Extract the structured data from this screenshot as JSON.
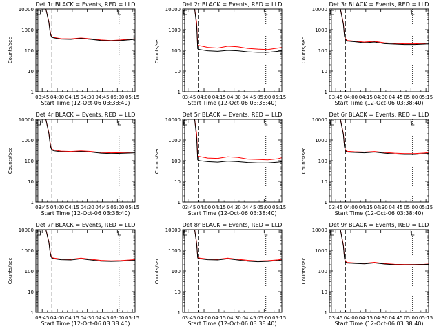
{
  "figure": {
    "title_suffix": "BLACK = Events, RED = LLD",
    "xlabel": "Start Time (12-Oct-06 03:38:40)",
    "ylabel": "Counts/sec",
    "x_ticks": [
      "03:45",
      "04:00",
      "04:15",
      "04:30",
      "04:45",
      "05:00",
      "05:15"
    ],
    "y_ticks": [
      "1",
      "10",
      "100",
      "1000",
      "10000"
    ],
    "colors": {
      "events": "#000000",
      "lld": "#ff0000"
    }
  },
  "chart_data": [
    {
      "type": "line",
      "title": "Det 1r BLACK = Events, RED = LLD",
      "xlabel": "Start Time (12-Oct-06 03:38:40)",
      "ylabel": "Counts/sec",
      "x_unit": "minutes after 03:38:40",
      "xlim": [
        0,
        99
      ],
      "ylim": [
        1,
        10000
      ],
      "yscale": "log",
      "vlines": [
        {
          "x": 2,
          "style": "solid"
        },
        {
          "x": 16,
          "style": "dashed"
        },
        {
          "x": 83,
          "style": "dotted"
        }
      ],
      "series": [
        {
          "name": "Events",
          "x": [
            10,
            13,
            14,
            15,
            16,
            18,
            25,
            35,
            45,
            55,
            65,
            75,
            85,
            95,
            99
          ],
          "y": [
            10000,
            2200,
            900,
            520,
            430,
            400,
            350,
            340,
            380,
            340,
            300,
            290,
            300,
            330,
            340
          ]
        },
        {
          "name": "LLD",
          "x": [
            10,
            13,
            14,
            15,
            16,
            18,
            25,
            35,
            45,
            55,
            65,
            75,
            85,
            95,
            99
          ],
          "y": [
            10000,
            2400,
            1000,
            560,
            460,
            420,
            370,
            360,
            400,
            360,
            320,
            300,
            320,
            350,
            360
          ]
        }
      ]
    },
    {
      "type": "line",
      "title": "Det 2r BLACK = Events, RED = LLD",
      "xlabel": "Start Time (12-Oct-06 03:38:40)",
      "ylabel": "Counts/sec",
      "x_unit": "minutes after 03:38:40",
      "xlim": [
        0,
        99
      ],
      "ylim": [
        1,
        10000
      ],
      "yscale": "log",
      "vlines": [
        {
          "x": 2,
          "style": "solid"
        },
        {
          "x": 16,
          "style": "dashed"
        },
        {
          "x": 83,
          "style": "dotted"
        }
      ],
      "series": [
        {
          "name": "Events",
          "x": [
            12,
            14,
            15,
            17,
            25,
            35,
            45,
            55,
            65,
            75,
            85,
            95,
            99
          ],
          "y": [
            10000,
            1500,
            120,
            110,
            95,
            90,
            100,
            95,
            85,
            80,
            80,
            90,
            95
          ]
        },
        {
          "name": "LLD",
          "x": [
            12,
            14,
            15,
            17,
            25,
            35,
            45,
            55,
            65,
            75,
            85,
            95,
            99
          ],
          "y": [
            10000,
            2200,
            180,
            170,
            140,
            130,
            160,
            150,
            125,
            115,
            110,
            130,
            140
          ]
        }
      ]
    },
    {
      "type": "line",
      "title": "Det 3r BLACK = Events, RED = LLD",
      "xlabel": "Start Time (12-Oct-06 03:38:40)",
      "ylabel": "Counts/sec",
      "x_unit": "minutes after 03:38:40",
      "xlim": [
        0,
        99
      ],
      "ylim": [
        1,
        10000
      ],
      "yscale": "log",
      "vlines": [
        {
          "x": 2,
          "style": "solid"
        },
        {
          "x": 16,
          "style": "dashed"
        },
        {
          "x": 83,
          "style": "dotted"
        }
      ],
      "series": [
        {
          "name": "Events",
          "x": [
            11,
            14,
            15,
            16,
            18,
            25,
            35,
            45,
            55,
            65,
            75,
            85,
            95,
            99
          ],
          "y": [
            10000,
            1800,
            500,
            330,
            280,
            260,
            230,
            250,
            210,
            200,
            190,
            190,
            200,
            205
          ]
        },
        {
          "name": "LLD",
          "x": [
            11,
            14,
            15,
            16,
            18,
            25,
            35,
            45,
            55,
            65,
            75,
            85,
            95,
            99
          ],
          "y": [
            10000,
            2000,
            560,
            360,
            300,
            280,
            250,
            270,
            230,
            215,
            205,
            205,
            215,
            225
          ]
        }
      ]
    },
    {
      "type": "line",
      "title": "Det 4r BLACK = Events, RED = LLD",
      "xlabel": "Start Time (12-Oct-06 03:38:40)",
      "ylabel": "Counts/sec",
      "x_unit": "minutes after 03:38:40",
      "xlim": [
        0,
        99
      ],
      "ylim": [
        1,
        10000
      ],
      "yscale": "log",
      "vlines": [
        {
          "x": 2,
          "style": "solid"
        },
        {
          "x": 16,
          "style": "dashed"
        },
        {
          "x": 83,
          "style": "dotted"
        }
      ],
      "series": [
        {
          "name": "Events",
          "x": [
            10,
            13,
            14,
            15,
            16,
            18,
            25,
            35,
            45,
            55,
            65,
            75,
            85,
            95,
            99
          ],
          "y": [
            10000,
            2000,
            800,
            420,
            330,
            300,
            270,
            260,
            280,
            260,
            230,
            220,
            225,
            235,
            240
          ]
        },
        {
          "name": "LLD",
          "x": [
            10,
            13,
            14,
            15,
            16,
            18,
            25,
            35,
            45,
            55,
            65,
            75,
            85,
            95,
            99
          ],
          "y": [
            10000,
            2200,
            900,
            460,
            360,
            330,
            290,
            280,
            300,
            280,
            250,
            240,
            245,
            255,
            260
          ]
        }
      ]
    },
    {
      "type": "line",
      "title": "Det 5r BLACK = Events, RED = LLD",
      "xlabel": "Start Time (12-Oct-06 03:38:40)",
      "ylabel": "Counts/sec",
      "x_unit": "minutes after 03:38:40",
      "xlim": [
        0,
        99
      ],
      "ylim": [
        1,
        10000
      ],
      "yscale": "log",
      "vlines": [
        {
          "x": 2,
          "style": "solid"
        },
        {
          "x": 16,
          "style": "dashed"
        },
        {
          "x": 83,
          "style": "dotted"
        }
      ],
      "series": [
        {
          "name": "Events",
          "x": [
            12,
            14,
            15,
            17,
            25,
            35,
            45,
            55,
            65,
            75,
            85,
            95,
            99
          ],
          "y": [
            10000,
            1200,
            110,
            100,
            90,
            85,
            95,
            90,
            82,
            78,
            78,
            85,
            90
          ]
        },
        {
          "name": "LLD",
          "x": [
            12,
            14,
            15,
            17,
            25,
            35,
            45,
            55,
            65,
            75,
            85,
            95,
            99
          ],
          "y": [
            10000,
            2000,
            170,
            160,
            135,
            130,
            155,
            145,
            120,
            115,
            110,
            125,
            140
          ]
        }
      ]
    },
    {
      "type": "line",
      "title": "Det 6r BLACK = Events, RED = LLD",
      "xlabel": "Start Time (12-Oct-06 03:38:40)",
      "ylabel": "Counts/sec",
      "x_unit": "minutes after 03:38:40",
      "xlim": [
        0,
        99
      ],
      "ylim": [
        1,
        10000
      ],
      "yscale": "log",
      "vlines": [
        {
          "x": 2,
          "style": "solid"
        },
        {
          "x": 16,
          "style": "dashed"
        },
        {
          "x": 83,
          "style": "dotted"
        }
      ],
      "series": [
        {
          "name": "Events",
          "x": [
            11,
            14,
            15,
            16,
            18,
            25,
            35,
            45,
            55,
            65,
            75,
            85,
            95,
            99
          ],
          "y": [
            10000,
            1800,
            480,
            300,
            260,
            250,
            240,
            260,
            230,
            210,
            200,
            200,
            215,
            225
          ]
        },
        {
          "name": "LLD",
          "x": [
            11,
            14,
            15,
            16,
            18,
            25,
            35,
            45,
            55,
            65,
            75,
            85,
            95,
            99
          ],
          "y": [
            10000,
            2000,
            540,
            330,
            285,
            270,
            260,
            280,
            250,
            230,
            220,
            220,
            235,
            250
          ]
        }
      ]
    },
    {
      "type": "line",
      "title": "Det 7r BLACK = Events, RED = LLD",
      "xlabel": "Start Time (12-Oct-06 03:38:40)",
      "ylabel": "Counts/sec",
      "x_unit": "minutes after 03:38:40",
      "xlim": [
        0,
        99
      ],
      "ylim": [
        1,
        10000
      ],
      "yscale": "log",
      "vlines": [
        {
          "x": 2,
          "style": "solid"
        },
        {
          "x": 16,
          "style": "dashed"
        },
        {
          "x": 83,
          "style": "dotted"
        }
      ],
      "series": [
        {
          "name": "Events",
          "x": [
            10,
            13,
            14,
            15,
            16,
            18,
            25,
            35,
            45,
            55,
            65,
            75,
            85,
            95,
            99
          ],
          "y": [
            10000,
            2400,
            950,
            520,
            420,
            390,
            350,
            340,
            390,
            340,
            300,
            290,
            300,
            320,
            330
          ]
        },
        {
          "name": "LLD",
          "x": [
            10,
            13,
            14,
            15,
            16,
            18,
            25,
            35,
            45,
            55,
            65,
            75,
            85,
            95,
            99
          ],
          "y": [
            10000,
            2600,
            1050,
            570,
            450,
            420,
            380,
            370,
            420,
            370,
            325,
            310,
            320,
            345,
            355
          ]
        }
      ]
    },
    {
      "type": "line",
      "title": "Det 8r BLACK = Events, RED = LLD",
      "xlabel": "Start Time (12-Oct-06 03:38:40)",
      "ylabel": "Counts/sec",
      "x_unit": "minutes after 03:38:40",
      "xlim": [
        0,
        99
      ],
      "ylim": [
        1,
        10000
      ],
      "yscale": "log",
      "vlines": [
        {
          "x": 2,
          "style": "solid"
        },
        {
          "x": 16,
          "style": "dashed"
        },
        {
          "x": 83,
          "style": "dotted"
        }
      ],
      "series": [
        {
          "name": "Events",
          "x": [
            12,
            14,
            15,
            17,
            25,
            35,
            45,
            55,
            65,
            75,
            85,
            95,
            99
          ],
          "y": [
            10000,
            2000,
            430,
            390,
            350,
            340,
            390,
            340,
            300,
            280,
            290,
            320,
            340
          ]
        },
        {
          "name": "LLD",
          "x": [
            12,
            14,
            15,
            17,
            25,
            35,
            45,
            55,
            65,
            75,
            85,
            95,
            99
          ],
          "y": [
            10000,
            2300,
            470,
            420,
            380,
            370,
            420,
            370,
            330,
            305,
            315,
            345,
            370
          ]
        }
      ]
    },
    {
      "type": "line",
      "title": "Det 9r BLACK = Events, RED = LLD",
      "xlabel": "Start Time (12-Oct-06 03:38:40)",
      "ylabel": "Counts/sec",
      "x_unit": "minutes after 03:38:40",
      "xlim": [
        0,
        99
      ],
      "ylim": [
        1,
        10000
      ],
      "yscale": "log",
      "vlines": [
        {
          "x": 2,
          "style": "solid"
        },
        {
          "x": 16,
          "style": "dashed"
        },
        {
          "x": 83,
          "style": "dotted"
        }
      ],
      "series": [
        {
          "name": "Events",
          "x": [
            11,
            14,
            15,
            16,
            18,
            25,
            35,
            45,
            55,
            65,
            75,
            85,
            95,
            99
          ],
          "y": [
            10000,
            1600,
            420,
            270,
            240,
            230,
            220,
            245,
            215,
            200,
            195,
            200,
            205,
            210
          ]
        },
        {
          "name": "LLD",
          "x": [
            11,
            14,
            15,
            16,
            18,
            25,
            35,
            45,
            55,
            65,
            75,
            85,
            95,
            99
          ],
          "y": [
            10000,
            1800,
            470,
            290,
            255,
            245,
            235,
            260,
            225,
            210,
            205,
            205,
            210,
            215
          ]
        }
      ]
    }
  ]
}
